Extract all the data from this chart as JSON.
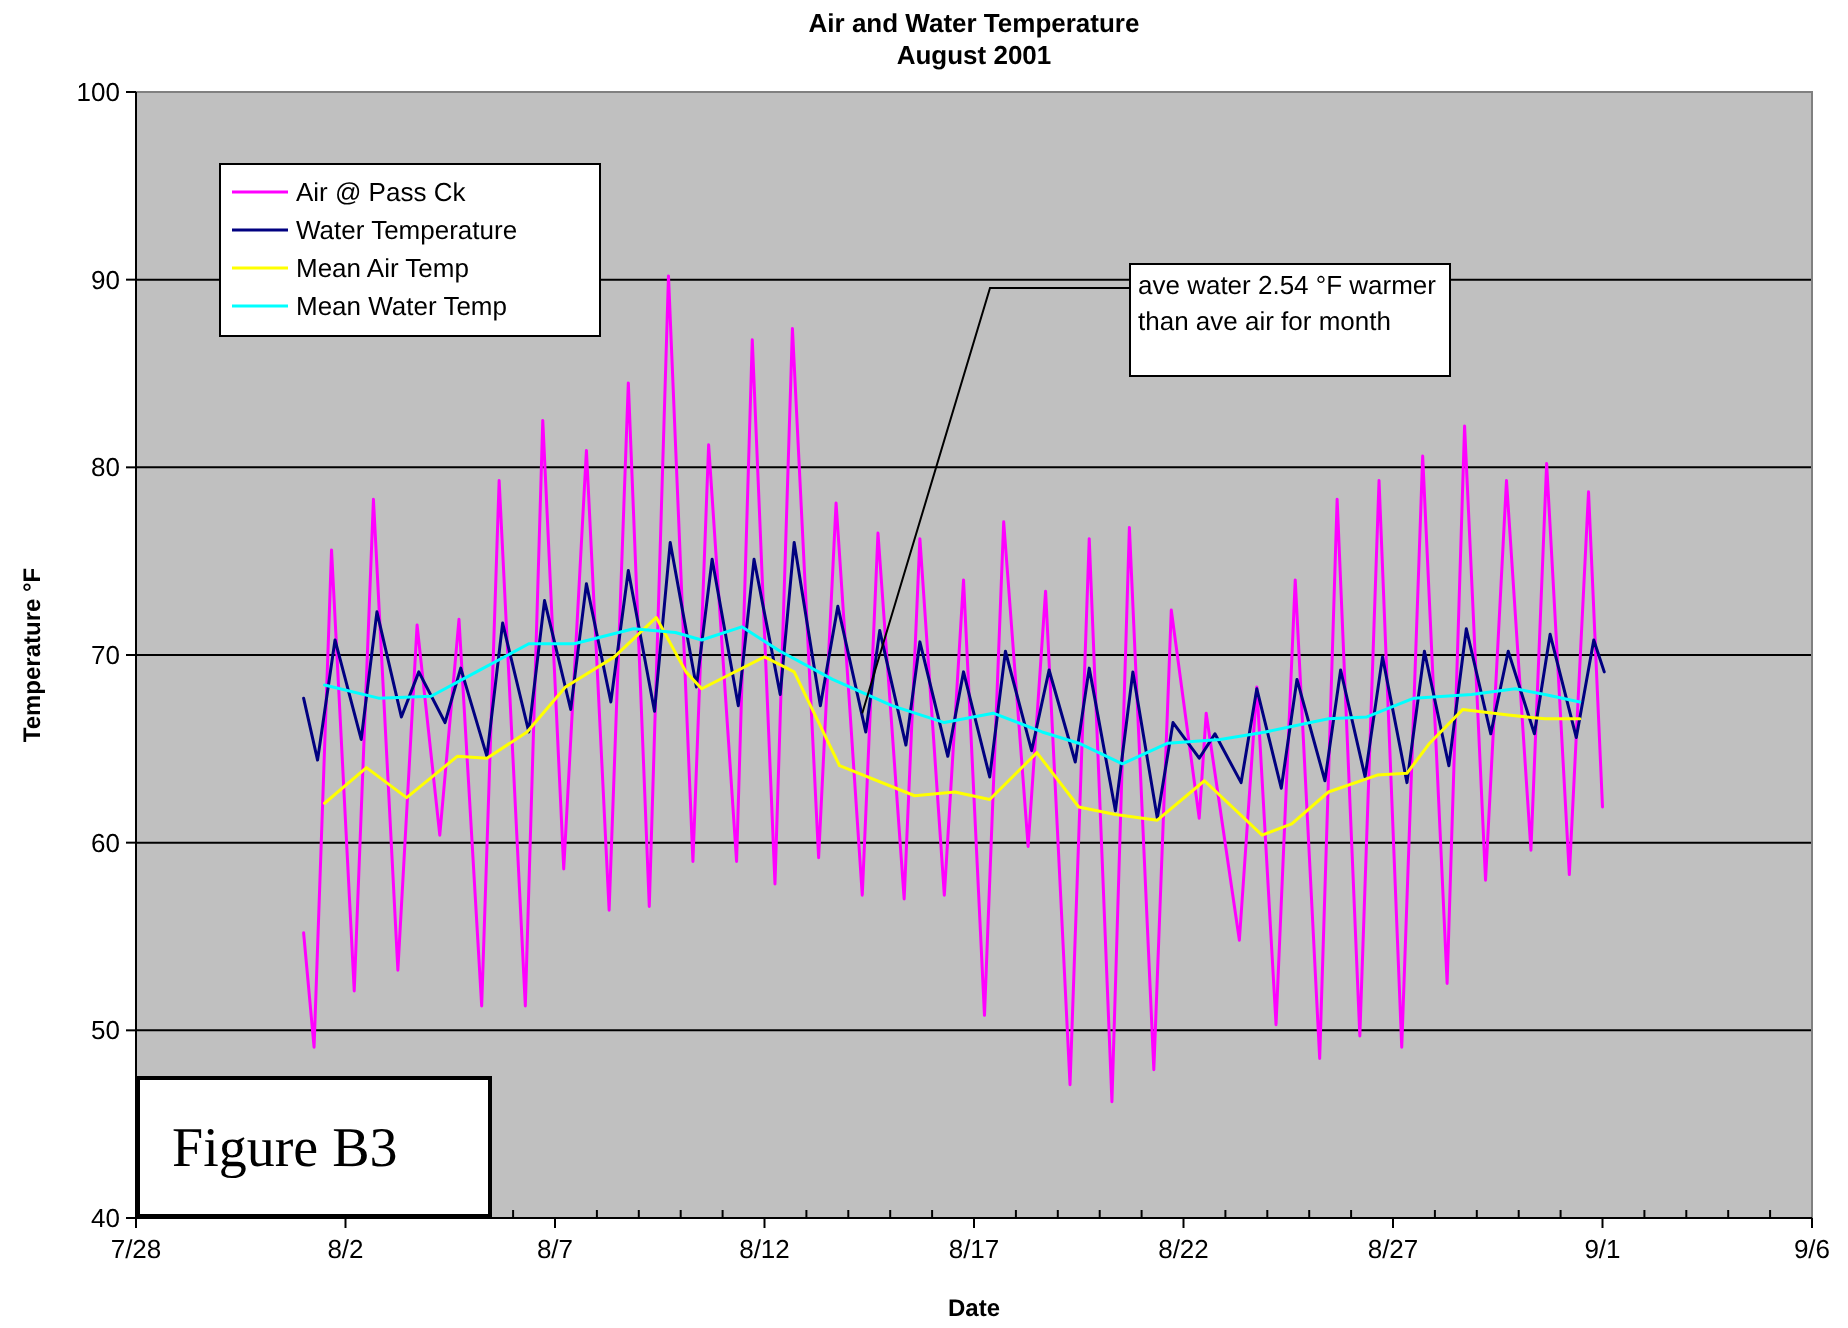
{
  "chart_data": {
    "type": "line",
    "title": "Air and Water Temperature",
    "subtitle": "August 2001",
    "xlabel": "Date",
    "ylabel": "Temperature °F",
    "xlim": [
      "2001-07-28",
      "2001-09-06"
    ],
    "xticks": [
      {
        "value": "2001-07-28",
        "label": "7/28"
      },
      {
        "value": "2001-07-29",
        "label": null
      },
      {
        "value": "2001-07-30",
        "label": null
      },
      {
        "value": "2001-07-31",
        "label": null
      },
      {
        "value": "2001-08-01",
        "label": null
      },
      {
        "value": "2001-08-02",
        "label": "8/2"
      },
      {
        "value": "2001-08-03",
        "label": null
      },
      {
        "value": "2001-08-04",
        "label": null
      },
      {
        "value": "2001-08-05",
        "label": null
      },
      {
        "value": "2001-08-06",
        "label": null
      },
      {
        "value": "2001-08-07",
        "label": "8/7"
      },
      {
        "value": "2001-08-08",
        "label": null
      },
      {
        "value": "2001-08-09",
        "label": null
      },
      {
        "value": "2001-08-10",
        "label": null
      },
      {
        "value": "2001-08-11",
        "label": null
      },
      {
        "value": "2001-08-12",
        "label": "8/12"
      },
      {
        "value": "2001-08-13",
        "label": null
      },
      {
        "value": "2001-08-14",
        "label": null
      },
      {
        "value": "2001-08-15",
        "label": null
      },
      {
        "value": "2001-08-16",
        "label": null
      },
      {
        "value": "2001-08-17",
        "label": "8/17"
      },
      {
        "value": "2001-08-18",
        "label": null
      },
      {
        "value": "2001-08-19",
        "label": null
      },
      {
        "value": "2001-08-20",
        "label": null
      },
      {
        "value": "2001-08-21",
        "label": null
      },
      {
        "value": "2001-08-22",
        "label": "8/22"
      },
      {
        "value": "2001-08-23",
        "label": null
      },
      {
        "value": "2001-08-24",
        "label": null
      },
      {
        "value": "2001-08-25",
        "label": null
      },
      {
        "value": "2001-08-26",
        "label": null
      },
      {
        "value": "2001-08-27",
        "label": "8/27"
      },
      {
        "value": "2001-08-28",
        "label": null
      },
      {
        "value": "2001-08-29",
        "label": null
      },
      {
        "value": "2001-08-30",
        "label": null
      },
      {
        "value": "2001-08-31",
        "label": null
      },
      {
        "value": "2001-09-01",
        "label": "9/1"
      },
      {
        "value": "2001-09-02",
        "label": null
      },
      {
        "value": "2001-09-03",
        "label": null
      },
      {
        "value": "2001-09-04",
        "label": null
      },
      {
        "value": "2001-09-05",
        "label": null
      },
      {
        "value": "2001-09-06",
        "label": "9/6"
      }
    ],
    "ylim": [
      40,
      100
    ],
    "yticks": [
      40,
      50,
      60,
      70,
      80,
      90,
      100
    ],
    "grid": "y",
    "legend": "top left",
    "series": [
      {
        "name": "Air @ Pass Ck",
        "color": "#ff00ff",
        "x": [
          "2001-08-01T00:00",
          "2001-08-01T06:00",
          "2001-08-01T16:00",
          "2001-08-02T05:00",
          "2001-08-02T16:00",
          "2001-08-03T06:00",
          "2001-08-03T17:00",
          "2001-08-04T06:00",
          "2001-08-04T17:00",
          "2001-08-05T06:00",
          "2001-08-05T16:00",
          "2001-08-06T07:00",
          "2001-08-06T17:00",
          "2001-08-07T05:00",
          "2001-08-07T18:00",
          "2001-08-08T07:00",
          "2001-08-08T18:00",
          "2001-08-09T06:00",
          "2001-08-09T17:00",
          "2001-08-10T07:00",
          "2001-08-10T16:00",
          "2001-08-11T08:00",
          "2001-08-11T17:00",
          "2001-08-12T06:00",
          "2001-08-12T16:00",
          "2001-08-13T07:00",
          "2001-08-13T17:00",
          "2001-08-14T08:00",
          "2001-08-14T17:00",
          "2001-08-15T08:00",
          "2001-08-15T17:00",
          "2001-08-16T07:00",
          "2001-08-16T18:00",
          "2001-08-17T06:00",
          "2001-08-17T17:00",
          "2001-08-18T07:00",
          "2001-08-18T17:00",
          "2001-08-19T07:00",
          "2001-08-19T18:00",
          "2001-08-20T07:00",
          "2001-08-20T17:00",
          "2001-08-21T07:00",
          "2001-08-21T17:00",
          "2001-08-22T09:00",
          "2001-08-22T13:00",
          "2001-08-23T08:00",
          "2001-08-23T18:00",
          "2001-08-24T05:00",
          "2001-08-24T16:00",
          "2001-08-25T06:00",
          "2001-08-25T16:00",
          "2001-08-26T05:00",
          "2001-08-26T16:00",
          "2001-08-27T05:00",
          "2001-08-27T17:00",
          "2001-08-28T07:00",
          "2001-08-28T17:00",
          "2001-08-29T05:00",
          "2001-08-29T17:00",
          "2001-08-30T07:00",
          "2001-08-30T16:00",
          "2001-08-31T05:00",
          "2001-08-31T16:00",
          "2001-09-01T00:00"
        ],
        "values": [
          55.2,
          49.1,
          75.6,
          52.1,
          78.3,
          53.2,
          71.6,
          60.4,
          71.9,
          51.3,
          79.3,
          51.3,
          82.5,
          58.6,
          80.9,
          56.4,
          84.5,
          56.6,
          90.2,
          59.0,
          81.2,
          59.0,
          86.8,
          57.8,
          87.4,
          59.2,
          78.1,
          57.2,
          76.5,
          57.0,
          76.2,
          57.2,
          74.0,
          50.8,
          77.1,
          59.8,
          73.4,
          47.1,
          76.2,
          46.2,
          76.8,
          47.9,
          72.4,
          61.3,
          66.9,
          54.8,
          68.3,
          50.3,
          74.0,
          48.5,
          78.3,
          49.7,
          79.3,
          49.1,
          80.6,
          52.5,
          82.2,
          58.0,
          79.3,
          59.6,
          80.2,
          58.3,
          78.7,
          61.9
        ]
      },
      {
        "name": "Water Temperature",
        "color": "#000080",
        "x": [
          "2001-08-01T00:00",
          "2001-08-01T08:00",
          "2001-08-01T18:00",
          "2001-08-02T09:00",
          "2001-08-02T18:00",
          "2001-08-03T08:00",
          "2001-08-03T18:00",
          "2001-08-04T09:00",
          "2001-08-04T18:00",
          "2001-08-05T09:00",
          "2001-08-05T18:00",
          "2001-08-06T09:00",
          "2001-08-06T18:00",
          "2001-08-07T09:00",
          "2001-08-07T18:00",
          "2001-08-08T08:00",
          "2001-08-08T18:00",
          "2001-08-09T09:00",
          "2001-08-09T18:00",
          "2001-08-10T09:00",
          "2001-08-10T18:00",
          "2001-08-11T09:00",
          "2001-08-11T18:00",
          "2001-08-12T09:00",
          "2001-08-12T17:00",
          "2001-08-13T08:00",
          "2001-08-13T18:00",
          "2001-08-14T10:00",
          "2001-08-14T18:00",
          "2001-08-15T09:00",
          "2001-08-15T17:00",
          "2001-08-16T09:00",
          "2001-08-16T18:00",
          "2001-08-17T09:00",
          "2001-08-17T18:00",
          "2001-08-18T09:00",
          "2001-08-18T19:00",
          "2001-08-19T10:00",
          "2001-08-19T18:00",
          "2001-08-20T09:00",
          "2001-08-20T19:00",
          "2001-08-21T09:00",
          "2001-08-21T18:00",
          "2001-08-22T09:00",
          "2001-08-22T18:00",
          "2001-08-23T09:00",
          "2001-08-23T18:00",
          "2001-08-24T08:00",
          "2001-08-24T17:00",
          "2001-08-25T09:00",
          "2001-08-25T18:00",
          "2001-08-26T08:00",
          "2001-08-26T18:00",
          "2001-08-27T08:00",
          "2001-08-27T18:00",
          "2001-08-28T08:00",
          "2001-08-28T18:00",
          "2001-08-29T08:00",
          "2001-08-29T18:00",
          "2001-08-30T09:00",
          "2001-08-30T18:00",
          "2001-08-31T09:00",
          "2001-08-31T19:00",
          "2001-09-01T01:00"
        ],
        "values": [
          67.7,
          64.4,
          70.8,
          65.5,
          72.3,
          66.7,
          69.1,
          66.4,
          69.3,
          64.6,
          71.7,
          65.9,
          72.9,
          67.1,
          73.8,
          67.5,
          74.5,
          67.0,
          76.0,
          68.3,
          75.1,
          67.3,
          75.1,
          67.9,
          76.0,
          67.3,
          72.6,
          65.9,
          71.3,
          65.2,
          70.7,
          64.6,
          69.1,
          63.5,
          70.2,
          64.9,
          69.2,
          64.3,
          69.3,
          61.7,
          69.1,
          61.3,
          66.4,
          64.5,
          65.8,
          63.2,
          68.2,
          62.9,
          68.7,
          63.3,
          69.2,
          63.5,
          69.9,
          63.2,
          70.2,
          64.1,
          71.4,
          65.8,
          70.2,
          65.8,
          71.1,
          65.6,
          70.8,
          69.1
        ]
      },
      {
        "name": "Mean Air Temp",
        "color": "#ffff00",
        "x": [
          "2001-08-01T12:00",
          "2001-08-02T12:00",
          "2001-08-03T11:00",
          "2001-08-04T16:00",
          "2001-08-05T09:00",
          "2001-08-06T08:00",
          "2001-08-07T06:00",
          "2001-08-08T10:00",
          "2001-08-09T10:00",
          "2001-08-10T03:00",
          "2001-08-10T12:00",
          "2001-08-12T00:00",
          "2001-08-12T17:00",
          "2001-08-13T19:00",
          "2001-08-15T14:00",
          "2001-08-16T13:00",
          "2001-08-17T09:00",
          "2001-08-18T12:00",
          "2001-08-19T12:00",
          "2001-08-20T09:00",
          "2001-08-21T09:00",
          "2001-08-22T12:00",
          "2001-08-23T21:00",
          "2001-08-24T14:00",
          "2001-08-25T11:00",
          "2001-08-26T15:00",
          "2001-08-27T08:00",
          "2001-08-27T21:00",
          "2001-08-28T16:00",
          "2001-08-29T18:00",
          "2001-08-30T15:00",
          "2001-08-31T11:00"
        ],
        "values": [
          62.1,
          64.0,
          62.4,
          64.6,
          64.5,
          65.9,
          68.3,
          69.9,
          72.0,
          69.1,
          68.2,
          69.9,
          69.1,
          64.1,
          62.5,
          62.7,
          62.3,
          64.8,
          61.9,
          61.5,
          61.2,
          63.3,
          60.4,
          61.0,
          62.7,
          63.6,
          63.7,
          65.3,
          67.1,
          66.8,
          66.6,
          66.6
        ]
      },
      {
        "name": "Mean Water Temp",
        "color": "#00ffff",
        "x": [
          "2001-08-01T12:00",
          "2001-08-02T19:00",
          "2001-08-04T01:00",
          "2001-08-05T03:00",
          "2001-08-06T09:00",
          "2001-08-07T11:00",
          "2001-08-08T21:00",
          "2001-08-09T21:00",
          "2001-08-10T12:00",
          "2001-08-11T11:00",
          "2001-08-12T09:00",
          "2001-08-13T15:00",
          "2001-08-15T01:00",
          "2001-08-16T07:00",
          "2001-08-17T11:00",
          "2001-08-18T15:00",
          "2001-08-19T12:00",
          "2001-08-20T13:00",
          "2001-08-21T15:00",
          "2001-08-22T21:00",
          "2001-08-23T23:00",
          "2001-08-25T11:00",
          "2001-08-26T09:00",
          "2001-08-27T12:00",
          "2001-08-28T21:00",
          "2001-08-29T22:00",
          "2001-08-30T15:00",
          "2001-08-31T11:00"
        ],
        "values": [
          68.4,
          67.7,
          67.8,
          69.1,
          70.6,
          70.6,
          71.4,
          71.2,
          70.8,
          71.5,
          70.2,
          68.7,
          67.3,
          66.4,
          66.9,
          65.9,
          65.3,
          64.2,
          65.3,
          65.5,
          65.9,
          66.6,
          66.7,
          67.7,
          67.9,
          68.2,
          67.9,
          67.5
        ]
      }
    ],
    "annotations": [
      {
        "text": "ave water 2.54 °F warmer than ave air for month",
        "x": "2001-08-14T08:00",
        "y": 66.9
      },
      "Figure B3"
    ]
  }
}
